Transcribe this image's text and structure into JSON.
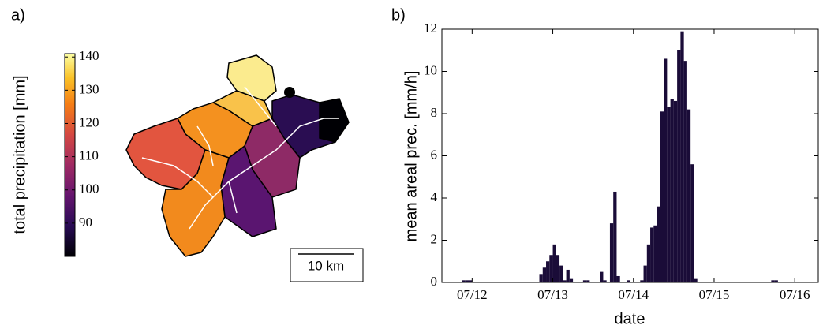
{
  "chart_data": [
    {
      "type": "map",
      "panel_label": "a)",
      "colorbar_label": "total precipitation [mm]",
      "clim": [
        80,
        141
      ],
      "colorbar_ticks": [
        90,
        100,
        110,
        120,
        130,
        140
      ],
      "scale_bar_label": "10 km"
    },
    {
      "type": "bar",
      "panel_label": "b)",
      "xlabel": "date",
      "ylabel": "mean areal prec. [mm/h]",
      "color": "#1a0c38",
      "x": [
        -3,
        -2,
        -1,
        20,
        21,
        22,
        23,
        24,
        25,
        26,
        27,
        28,
        29,
        33,
        34,
        38,
        39,
        41,
        42,
        43,
        46,
        50,
        51,
        52,
        53,
        54,
        55,
        56,
        57,
        58,
        59,
        60,
        61,
        62,
        63,
        64,
        65,
        66,
        89,
        90
      ],
      "values": [
        0.1,
        0.1,
        0.1,
        0.4,
        0.7,
        1.0,
        1.3,
        1.8,
        1.3,
        0.8,
        0.1,
        0.6,
        0.2,
        0.1,
        0.1,
        0.5,
        0.1,
        2.8,
        4.3,
        0.3,
        0.1,
        0.1,
        0.8,
        1.8,
        2.6,
        2.7,
        3.6,
        8.1,
        10.6,
        8.3,
        8.7,
        8.6,
        11.0,
        11.9,
        10.5,
        8.2,
        5.6,
        0.2,
        0.1,
        0.1
      ],
      "xlim": [
        -9,
        103
      ],
      "ylim": [
        0,
        12
      ],
      "xticks": [
        {
          "value": 0,
          "label": "07/12"
        },
        {
          "value": 24,
          "label": "07/13"
        },
        {
          "value": 48,
          "label": "07/14"
        },
        {
          "value": 72,
          "label": "07/15"
        },
        {
          "value": 96,
          "label": "07/16"
        }
      ],
      "yticks": [
        0,
        2,
        4,
        6,
        8,
        10,
        12
      ]
    }
  ]
}
